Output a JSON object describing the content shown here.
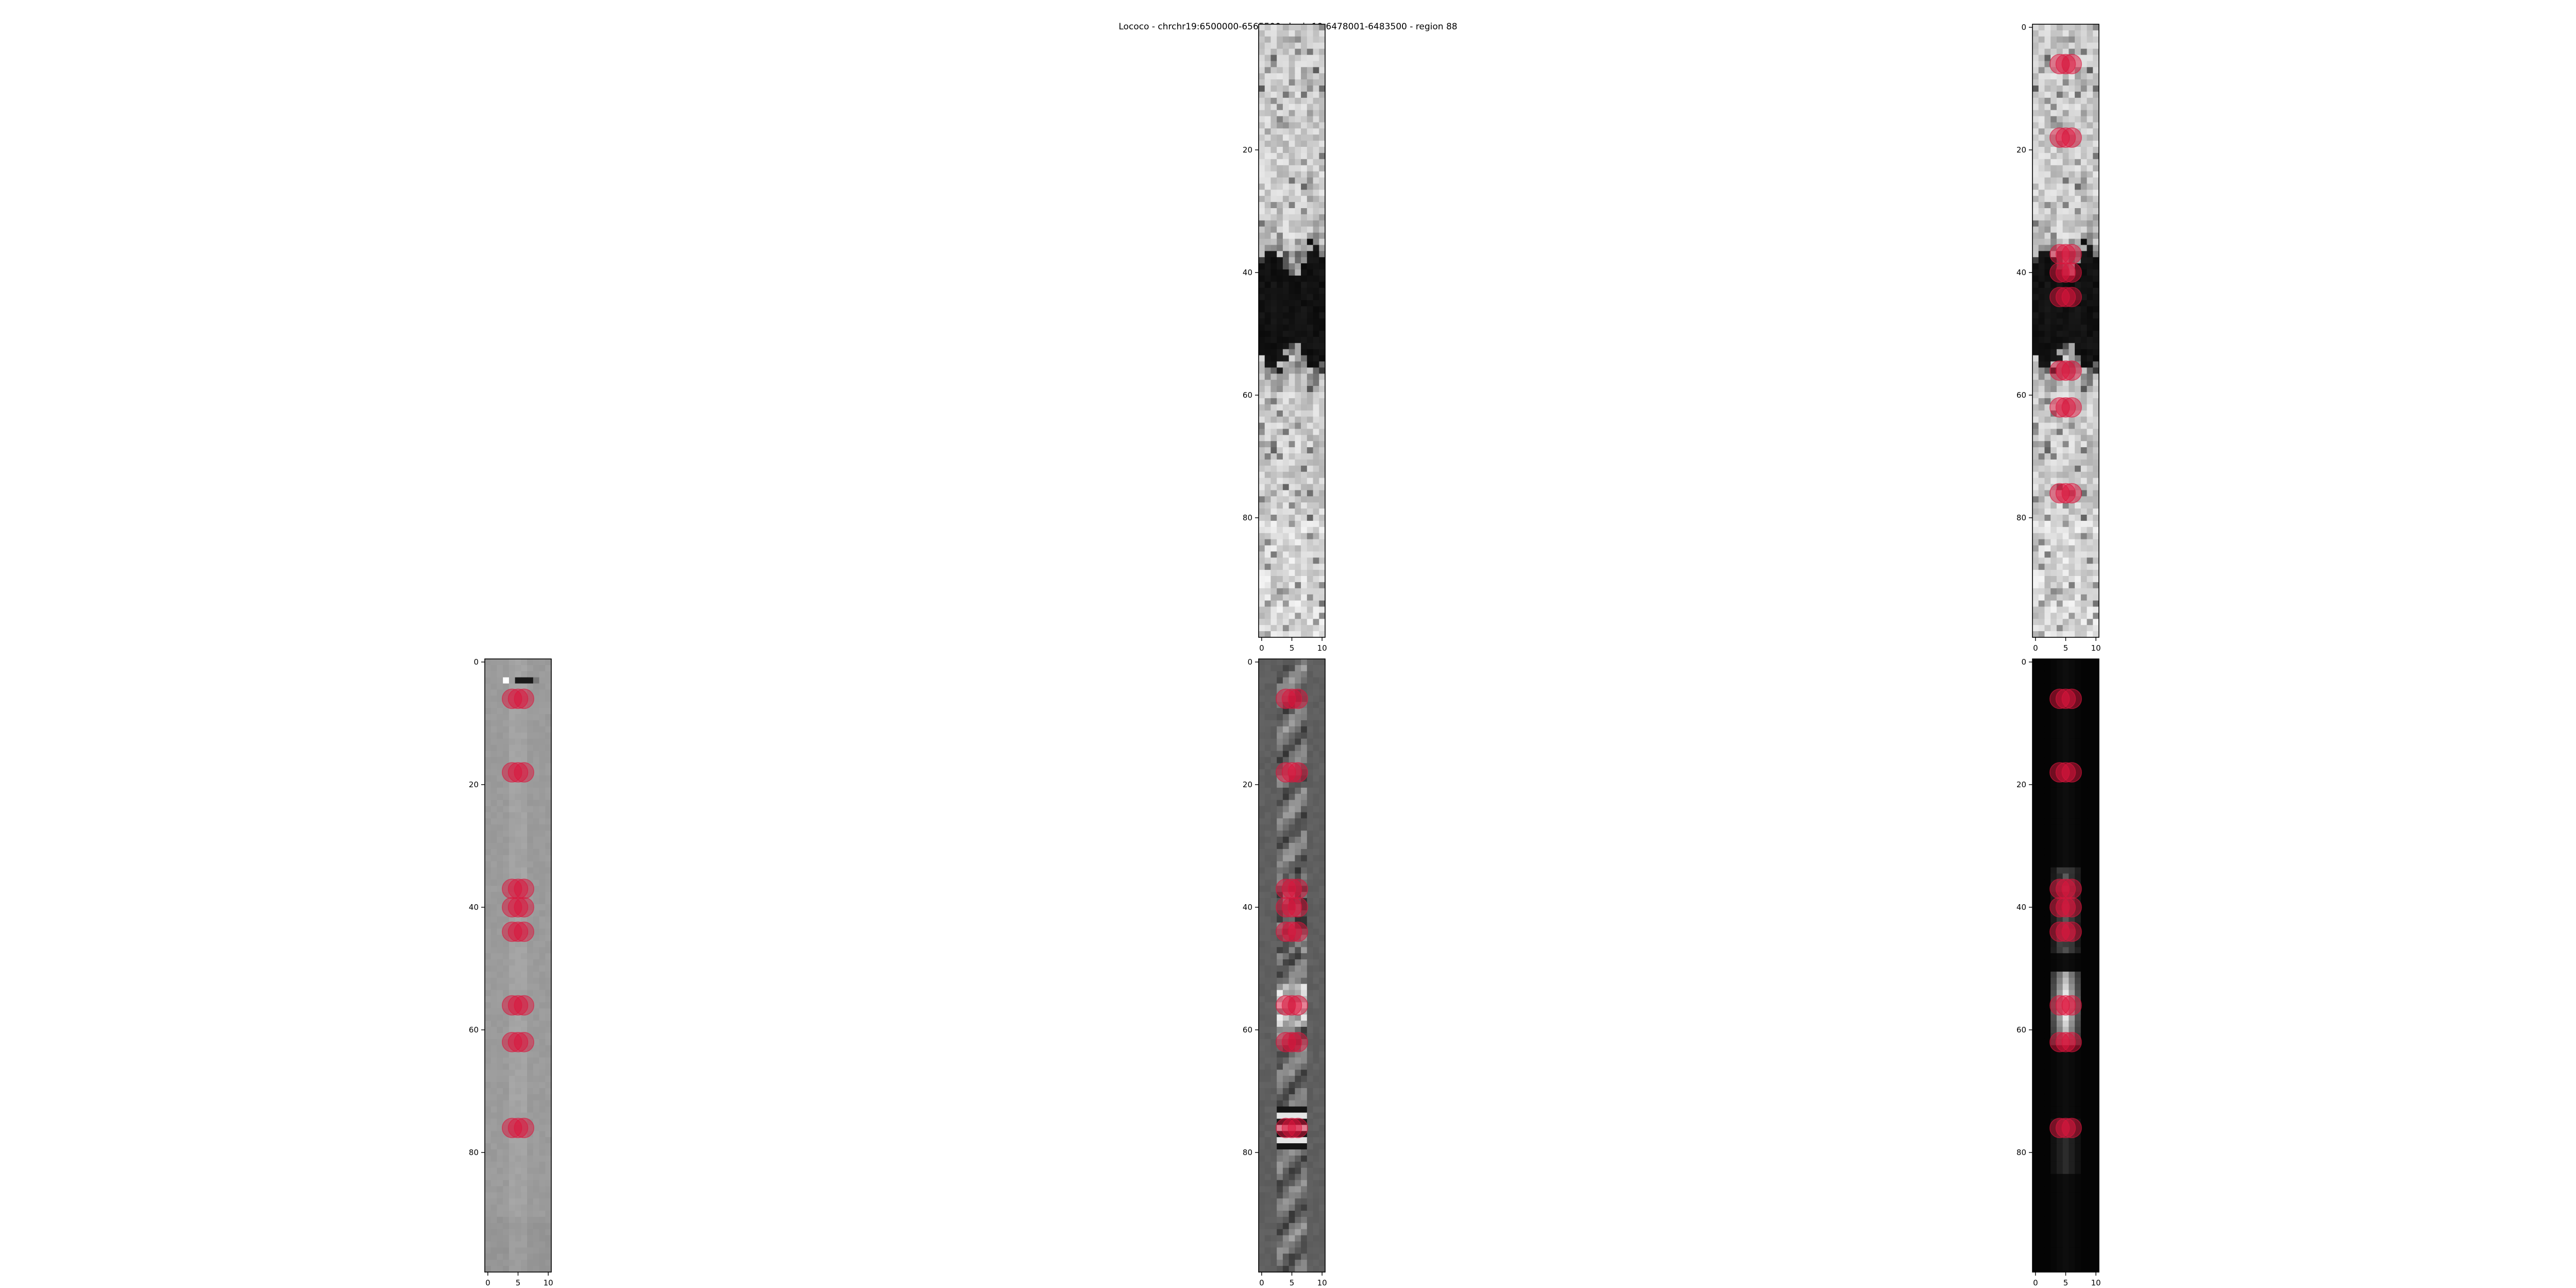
{
  "figure": {
    "title": "Lococo - chrchr19:6500000-6565500-chrchr19:6478001-6483500 - region 88"
  },
  "colors": {
    "marker": "#dc143c",
    "axes_edge": "#000000"
  },
  "chart_data": [
    {
      "type": "heatmap",
      "panel": "top-middle",
      "cmap": "gray_r",
      "rows": 100,
      "cols": 11,
      "xlim": [
        0,
        10
      ],
      "ylim": [
        99,
        0
      ],
      "xticks": [
        "0",
        "5",
        "10"
      ],
      "yticks": [
        "20",
        "40",
        "60",
        "80"
      ],
      "markers": []
    },
    {
      "type": "heatmap",
      "panel": "top-right",
      "cmap": "gray_r",
      "rows": 100,
      "cols": 11,
      "xlim": [
        0,
        10
      ],
      "ylim": [
        99,
        0
      ],
      "xticks": [
        "0",
        "5",
        "10"
      ],
      "yticks": [
        "0",
        "20",
        "40",
        "60",
        "80"
      ],
      "markers": [
        {
          "y": 6,
          "x": [
            4,
            5,
            6
          ]
        },
        {
          "y": 18,
          "x": [
            4,
            5,
            6
          ]
        },
        {
          "y": 37,
          "x": [
            4,
            5,
            6
          ]
        },
        {
          "y": 40,
          "x": [
            4,
            5,
            6
          ]
        },
        {
          "y": 44,
          "x": [
            4,
            5,
            6
          ]
        },
        {
          "y": 56,
          "x": [
            4,
            5,
            6
          ]
        },
        {
          "y": 62,
          "x": [
            4,
            5,
            6
          ]
        },
        {
          "y": 76,
          "x": [
            4,
            5,
            6
          ]
        }
      ]
    },
    {
      "type": "heatmap",
      "panel": "bottom-left",
      "cmap": "gray",
      "rows": 100,
      "cols": 11,
      "xlim": [
        0,
        10
      ],
      "ylim": [
        99,
        0
      ],
      "xticks": [
        "0",
        "5",
        "10"
      ],
      "yticks": [
        "0",
        "20",
        "40",
        "60",
        "80"
      ],
      "markers": [
        {
          "y": 6,
          "x": [
            4,
            5,
            6
          ]
        },
        {
          "y": 18,
          "x": [
            4,
            5,
            6
          ]
        },
        {
          "y": 37,
          "x": [
            4,
            5,
            6
          ]
        },
        {
          "y": 40,
          "x": [
            4,
            5,
            6
          ]
        },
        {
          "y": 44,
          "x": [
            4,
            5,
            6
          ]
        },
        {
          "y": 56,
          "x": [
            4,
            5,
            6
          ]
        },
        {
          "y": 62,
          "x": [
            4,
            5,
            6
          ]
        },
        {
          "y": 76,
          "x": [
            4,
            5,
            6
          ]
        }
      ]
    },
    {
      "type": "heatmap",
      "panel": "bottom-middle",
      "cmap": "gray",
      "rows": 100,
      "cols": 11,
      "xlim": [
        0,
        10
      ],
      "ylim": [
        99,
        0
      ],
      "xticks": [
        "0",
        "5",
        "10"
      ],
      "yticks": [
        "0",
        "20",
        "40",
        "60",
        "80"
      ],
      "markers": [
        {
          "y": 6,
          "x": [
            4,
            5,
            6
          ]
        },
        {
          "y": 18,
          "x": [
            4,
            5,
            6
          ]
        },
        {
          "y": 37,
          "x": [
            4,
            5,
            6
          ]
        },
        {
          "y": 40,
          "x": [
            4,
            5,
            6
          ]
        },
        {
          "y": 44,
          "x": [
            4,
            5,
            6
          ]
        },
        {
          "y": 56,
          "x": [
            4,
            5,
            6
          ]
        },
        {
          "y": 62,
          "x": [
            4,
            5,
            6
          ]
        },
        {
          "y": 76,
          "x": [
            4,
            5,
            6
          ]
        }
      ]
    },
    {
      "type": "heatmap",
      "panel": "bottom-right",
      "cmap": "gray",
      "rows": 100,
      "cols": 11,
      "xlim": [
        0,
        10
      ],
      "ylim": [
        99,
        0
      ],
      "xticks": [
        "0",
        "5",
        "10"
      ],
      "yticks": [
        "0",
        "20",
        "40",
        "60",
        "80"
      ],
      "markers": [
        {
          "y": 6,
          "x": [
            4,
            5,
            6
          ]
        },
        {
          "y": 18,
          "x": [
            4,
            5,
            6
          ]
        },
        {
          "y": 37,
          "x": [
            4,
            5,
            6
          ]
        },
        {
          "y": 40,
          "x": [
            4,
            5,
            6
          ]
        },
        {
          "y": 44,
          "x": [
            4,
            5,
            6
          ]
        },
        {
          "y": 56,
          "x": [
            4,
            5,
            6
          ]
        },
        {
          "y": 62,
          "x": [
            4,
            5,
            6
          ]
        },
        {
          "y": 76,
          "x": [
            4,
            5,
            6
          ]
        }
      ]
    }
  ]
}
